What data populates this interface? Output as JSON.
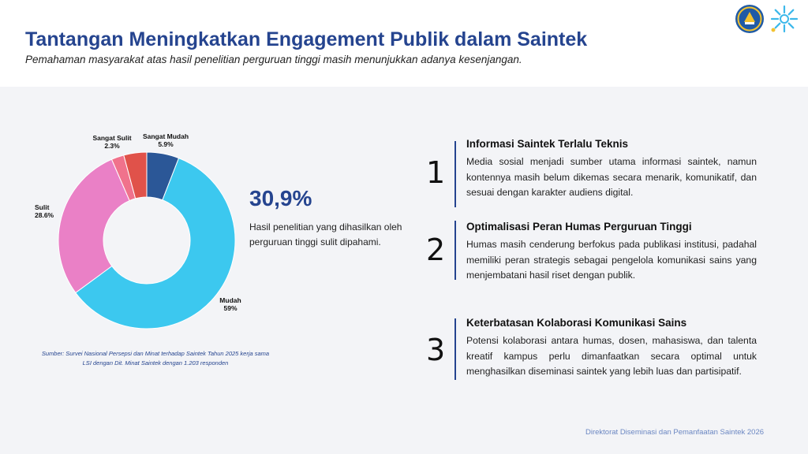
{
  "header": {
    "title": "Tantangan Meningkatkan Engagement Publik dalam Saintek",
    "subtitle": "Pemahaman masyarakat atas hasil penelitian perguruan tinggi masih menunjukkan adanya kesenjangan."
  },
  "chart_data": {
    "type": "pie",
    "donut": true,
    "categories": [
      "Sangat Mudah",
      "Mudah",
      "Sulit",
      "Sangat Sulit"
    ],
    "values": [
      5.9,
      59,
      28.6,
      2.3
    ],
    "value_labels": [
      "5.9%",
      "59%",
      "28.6%",
      "2.3%"
    ],
    "remainder_value": 4.2,
    "colors": [
      "#2b5797",
      "#3cc8ef",
      "#ea80c6",
      "#f0728c",
      "#e0524a"
    ]
  },
  "stat": {
    "value": "30,9%",
    "description": "Hasil penelitian yang dihasilkan oleh perguruan tinggi sulit dipahami."
  },
  "source": "Sumber: Survei Nasional Persepsi dan Minat terhadap Saintek Tahun 2025 kerja sama LSI dengan Dit. Minat Saintek dengan 1.203 responden",
  "points": [
    {
      "number": "1",
      "title": "Informasi Saintek Terlalu Teknis",
      "text": "Media sosial menjadi sumber utama informasi saintek, namun kontennya masih belum dikemas secara menarik, komunikatif, dan sesuai dengan karakter audiens digital."
    },
    {
      "number": "2",
      "title": "Optimalisasi Peran Humas Perguruan Tinggi",
      "text": "Humas masih cenderung berfokus pada publikasi institusi, padahal memiliki peran strategis sebagai pengelola komunikasi sains yang menjembatani hasil riset dengan publik."
    },
    {
      "number": "3",
      "title": "Keterbatasan Kolaborasi Komunikasi Sains",
      "text": "Potensi kolaborasi antara humas, dosen, mahasiswa, dan talenta kreatif kampus perlu dimanfaatkan secara optimal untuk menghasilkan diseminasi saintek yang lebih luas dan partisipatif."
    }
  ],
  "footer": "Direktorat Diseminasi dan Pemanfaatan Saintek 2026",
  "logos": [
    "kemdiktisaintek-emblem-icon",
    "sunburst-logo-icon"
  ]
}
